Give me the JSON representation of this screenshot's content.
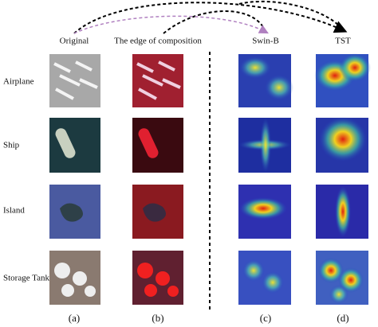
{
  "columns": [
    "Original",
    "The edge of composition",
    "Swin-B",
    "TST"
  ],
  "rows": [
    {
      "label": "Airplane"
    },
    {
      "label": "Ship"
    },
    {
      "label": "Island"
    },
    {
      "label": "Storage Tank"
    }
  ],
  "captions": [
    "(a)",
    "(b)",
    "(c)",
    "(d)"
  ]
}
